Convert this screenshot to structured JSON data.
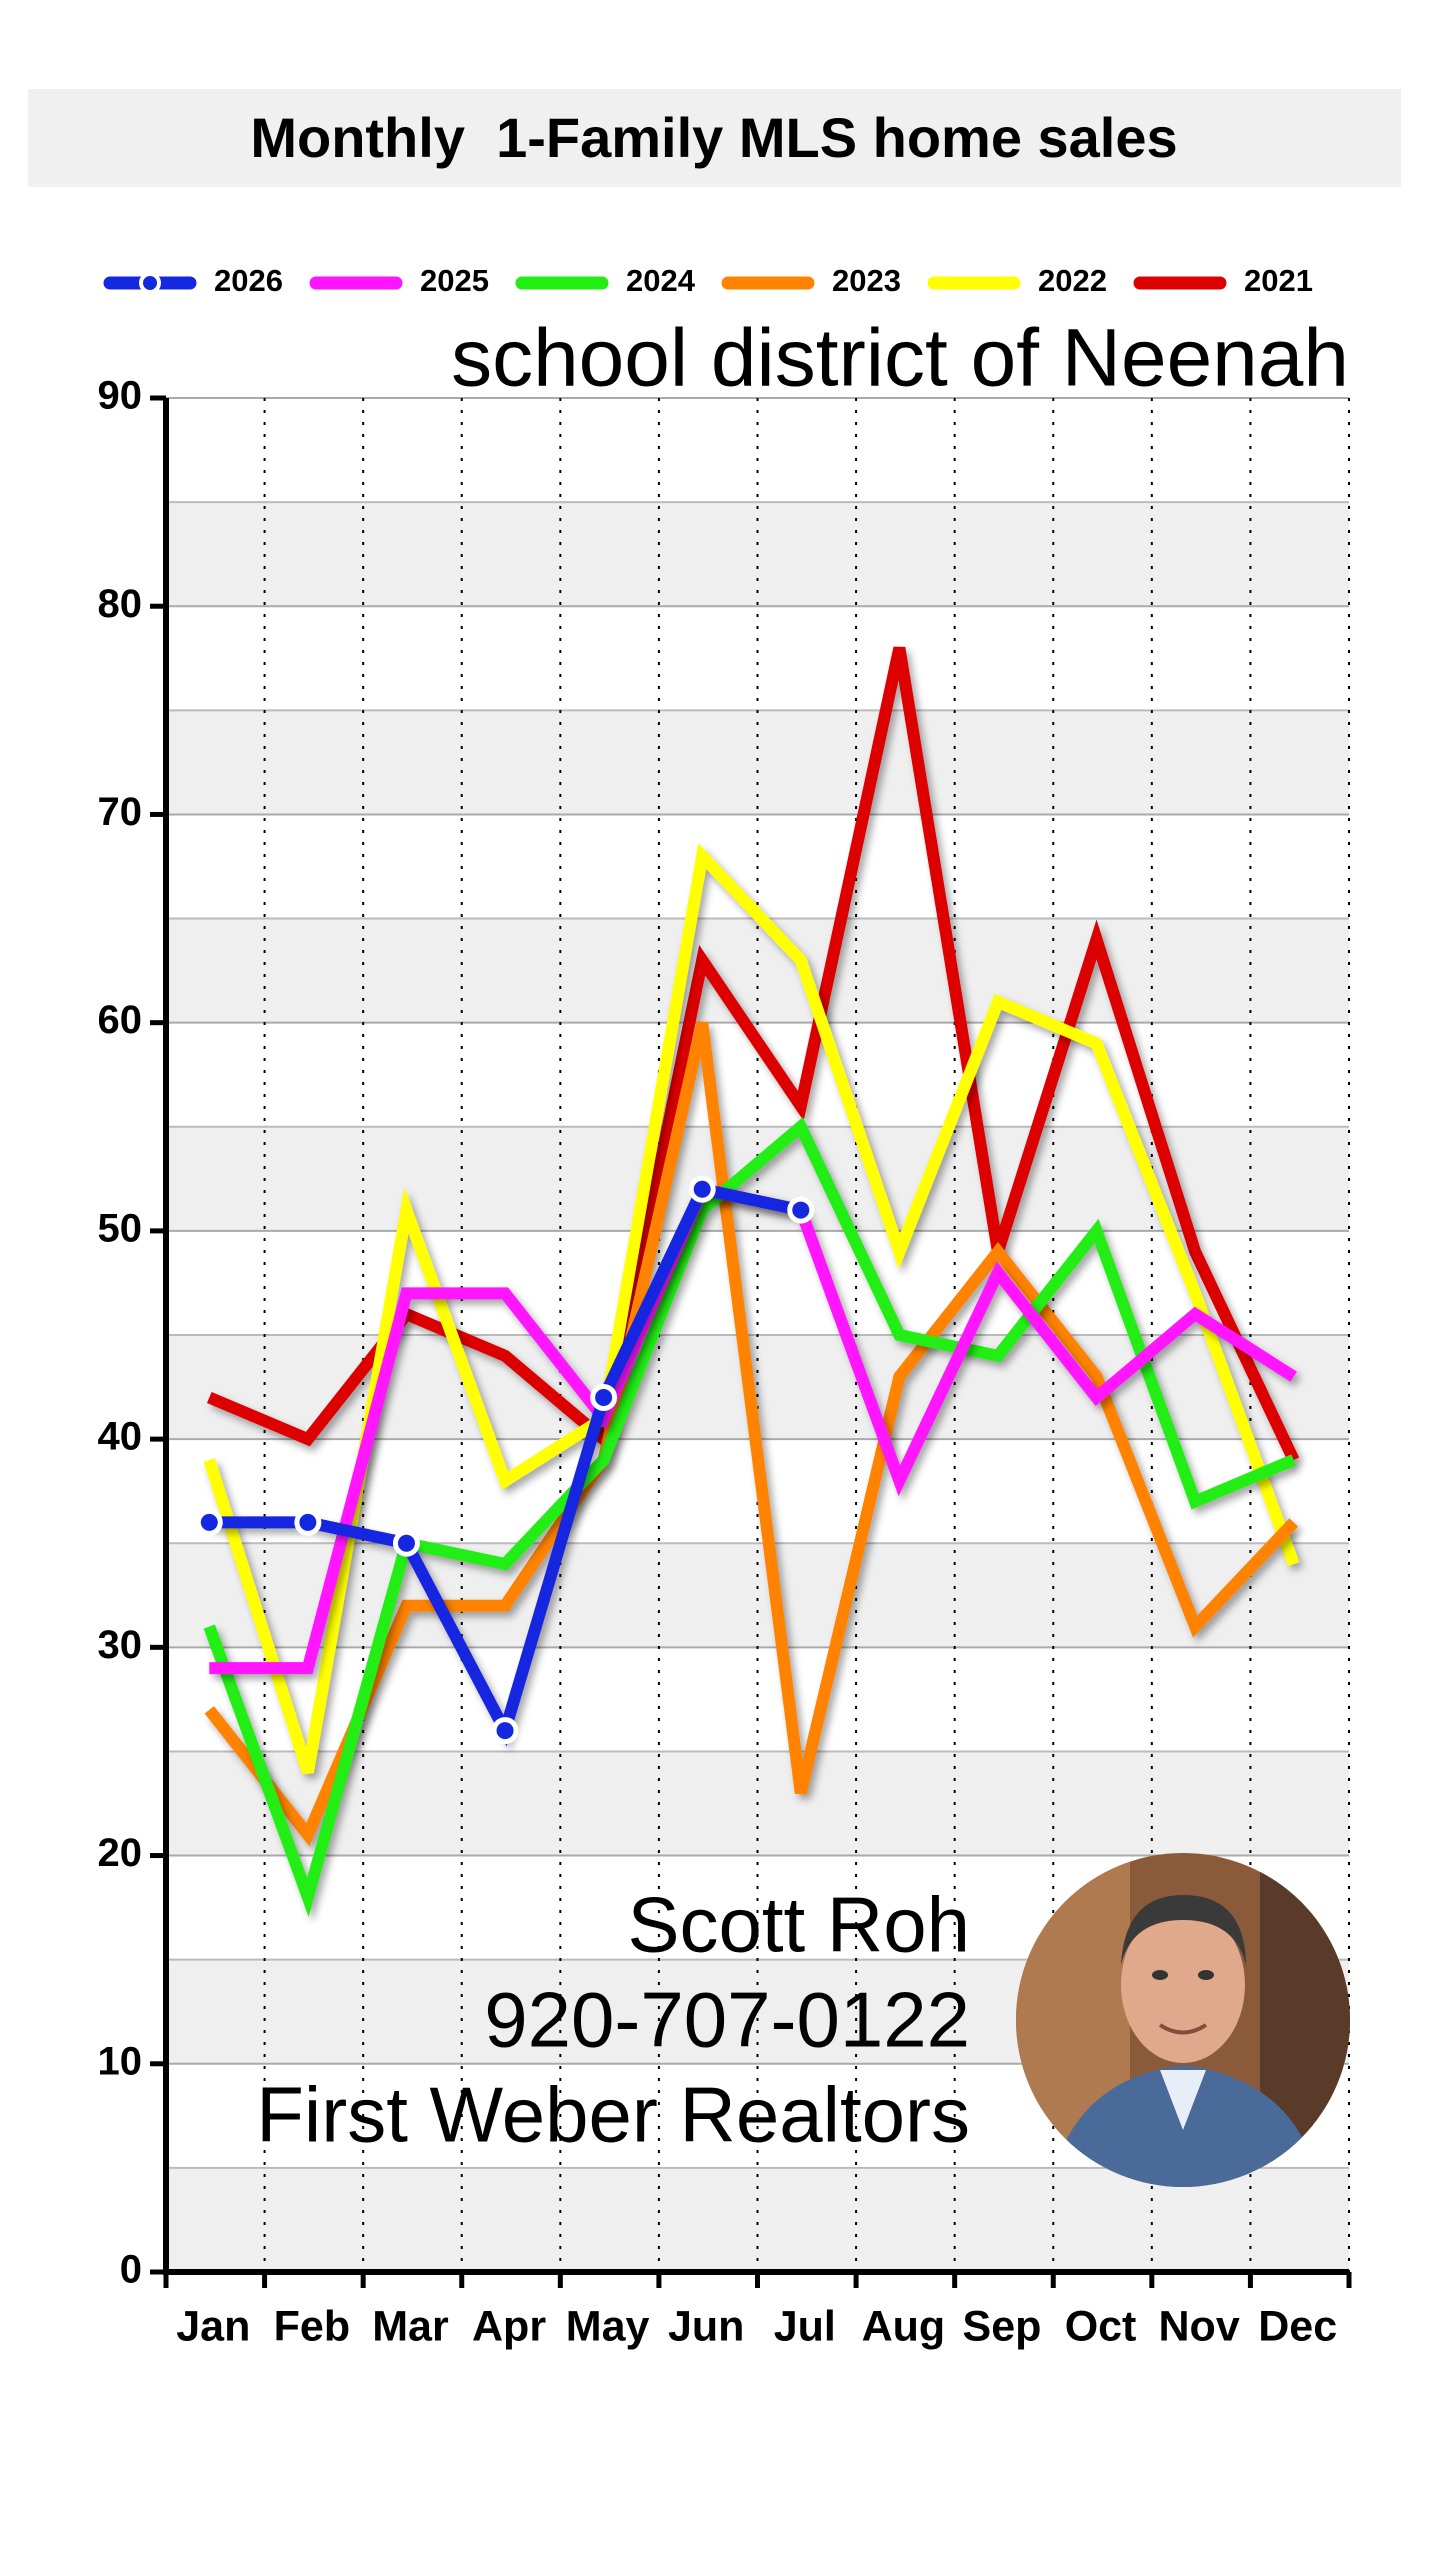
{
  "chart_data": {
    "type": "line",
    "title": "Monthly  1-Family MLS home sales",
    "subtitle": "school district of Neenah",
    "categories": [
      "Jan",
      "Feb",
      "Mar",
      "Apr",
      "May",
      "Jun",
      "Jul",
      "Aug",
      "Sep",
      "Oct",
      "Nov",
      "Dec"
    ],
    "series": [
      {
        "name": "2026",
        "color": "#1428e0",
        "marker": "circle",
        "values": [
          36,
          36,
          35,
          26,
          42,
          52,
          51,
          null,
          null,
          null,
          null,
          null
        ]
      },
      {
        "name": "2025",
        "color": "#ff14ff",
        "values": [
          29,
          29,
          47,
          47,
          41,
          52,
          51,
          38,
          48,
          42,
          46,
          43
        ]
      },
      {
        "name": "2024",
        "color": "#22ee14",
        "values": [
          31,
          18,
          35,
          34,
          39,
          51,
          55,
          45,
          44,
          50,
          37,
          39
        ]
      },
      {
        "name": "2023",
        "color": "#ff8200",
        "values": [
          27,
          21,
          32,
          32,
          39,
          60,
          23,
          43,
          49,
          43,
          31,
          36
        ]
      },
      {
        "name": "2022",
        "color": "#ffff00",
        "values": [
          39,
          24,
          51,
          38,
          41,
          68,
          63,
          49,
          61,
          59,
          47,
          34
        ]
      },
      {
        "name": "2021",
        "color": "#dd0000",
        "values": [
          42,
          40,
          46,
          44,
          40,
          63,
          56,
          78,
          49,
          64,
          49,
          39
        ]
      }
    ],
    "ylim": [
      0,
      90
    ],
    "yticks": [
      0,
      10,
      20,
      30,
      40,
      50,
      60,
      70,
      80,
      90
    ],
    "grid": true,
    "legend": "top",
    "annotations": [
      "Scott Roh",
      "920-707-0122",
      "First Weber Realtors"
    ]
  }
}
